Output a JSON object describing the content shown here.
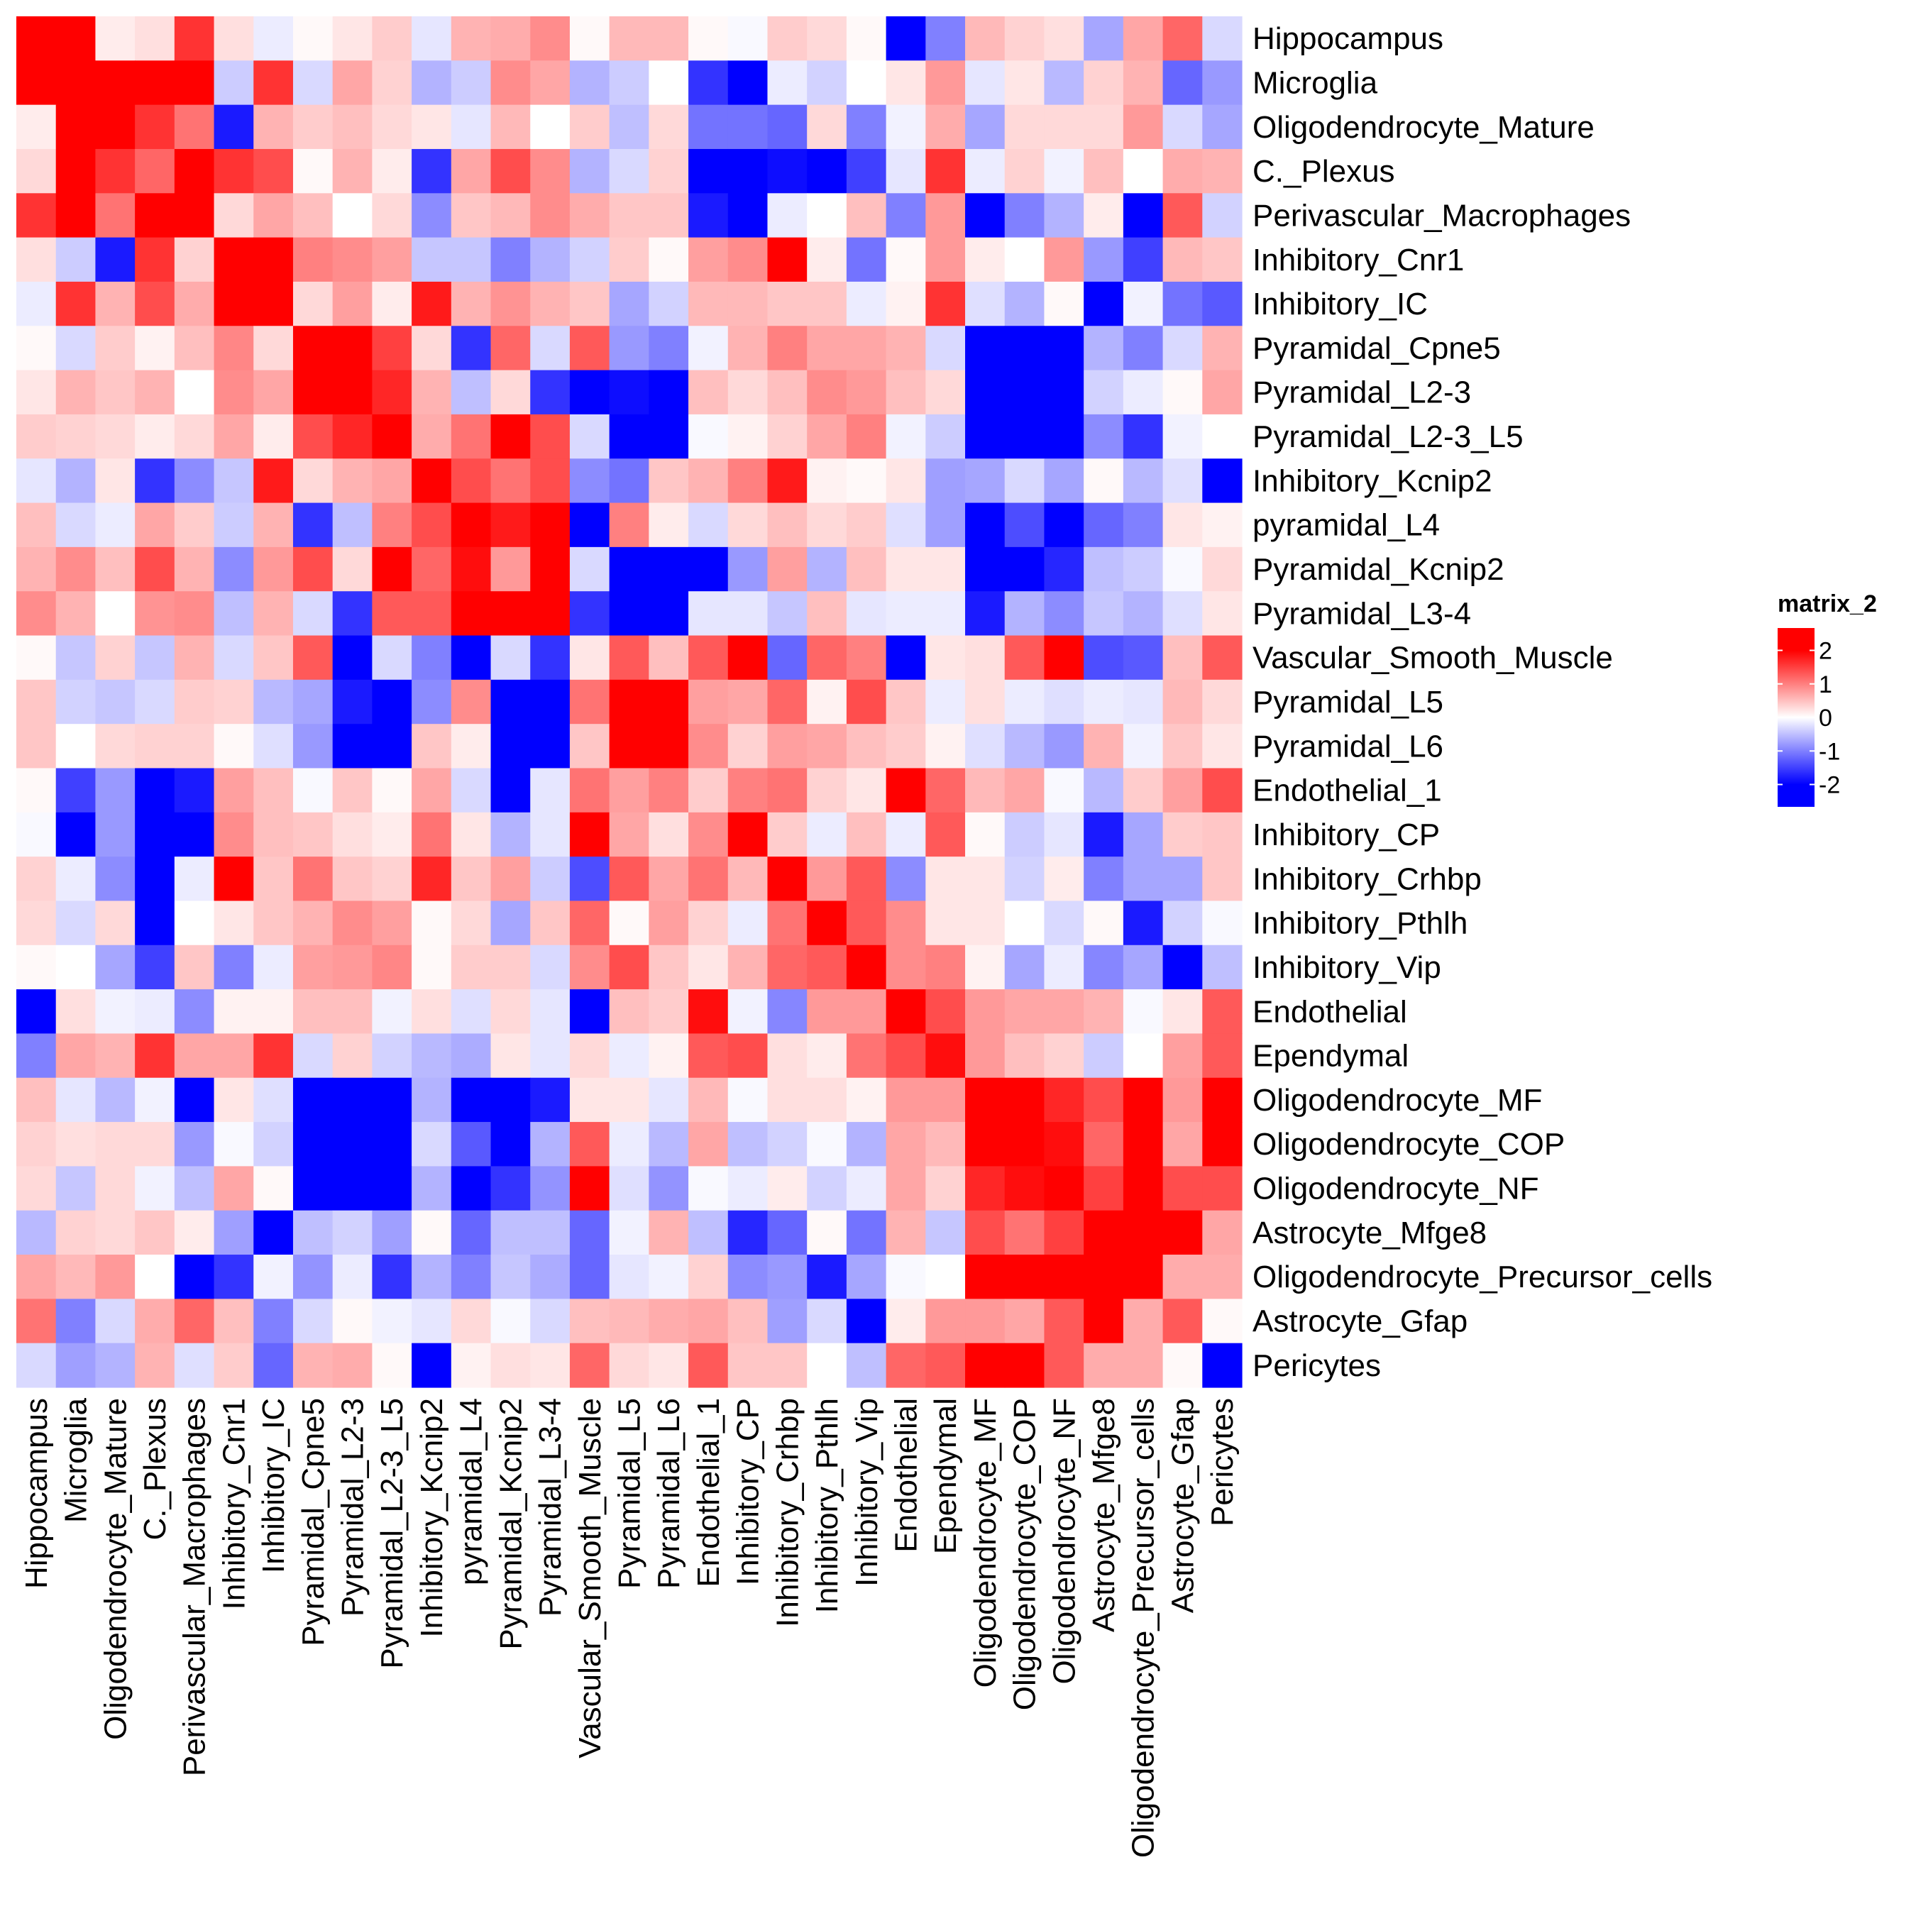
{
  "chart_data": {
    "type": "heatmap",
    "title": "",
    "legend": {
      "title": "matrix_2",
      "ticks": [
        2,
        1,
        0,
        -1,
        -2
      ],
      "range": [
        -2,
        2
      ],
      "colors": {
        "low": "#0000ff",
        "mid": "#ffffff",
        "high": "#ff0000"
      },
      "placement": "right"
    },
    "row_labels": [
      "Hippocampus",
      "Microglia",
      "Oligodendrocyte_Mature",
      "C._Plexus",
      "Perivascular_Macrophages",
      "Inhibitory_Cnr1",
      "Inhibitory_IC",
      "Pyramidal_Cpne5",
      "Pyramidal_L2-3",
      "Pyramidal_L2-3_L5",
      "Inhibitory_Kcnip2",
      "pyramidal_L4",
      "Pyramidal_Kcnip2",
      "Pyramidal_L3-4",
      "Vascular_Smooth_Muscle",
      "Pyramidal_L5",
      "Pyramidal_L6",
      "Endothelial_1",
      "Inhibitory_CP",
      "Inhibitory_Crhbp",
      "Inhibitory_Pthlh",
      "Inhibitory_Vip",
      "Endothelial",
      "Ependymal",
      "Oligodendrocyte_MF",
      "Oligodendrocyte_COP",
      "Oligodendrocyte_NF",
      "Astrocyte_Mfge8",
      "Oligodendrocyte_Precursor_cells",
      "Astrocyte_Gfap",
      "Pericytes"
    ],
    "col_labels": [
      "Hippocampus",
      "Microglia",
      "Oligodendrocyte_Mature",
      "C._Plexus",
      "Perivascular_Macrophages",
      "Inhibitory_Cnr1",
      "Inhibitory_IC",
      "Pyramidal_Cpne5",
      "Pyramidal_L2-3",
      "Pyramidal_L2-3_L5",
      "Inhibitory_Kcnip2",
      "pyramidal_L4",
      "Pyramidal_Kcnip2",
      "Pyramidal_L3-4",
      "Vascular_Smooth_Muscle",
      "Pyramidal_L5",
      "Pyramidal_L6",
      "Endothelial_1",
      "Inhibitory_CP",
      "Inhibitory_Crhbp",
      "Inhibitory_Pthlh",
      "Inhibitory_Vip",
      "Endothelial",
      "Ependymal",
      "Oligodendrocyte_MF",
      "Oligodendrocyte_COP",
      "Oligodendrocyte_NF",
      "Astrocyte_Mfge8",
      "Oligodendrocyte_Precursor_cells",
      "Astrocyte_Gfap",
      "Pericytes"
    ],
    "values": [
      [
        2,
        2,
        0.15,
        0.25,
        1.6,
        0.25,
        -0.15,
        0.05,
        0.2,
        0.4,
        -0.2,
        0.6,
        0.65,
        0.9,
        0.05,
        0.55,
        0.55,
        0.05,
        -0.05,
        0.4,
        0.3,
        0.05,
        -2,
        -1,
        0.55,
        0.35,
        0.25,
        -0.7,
        0.7,
        1.2,
        -0.3
      ],
      [
        2,
        2,
        2,
        2,
        2,
        -0.4,
        1.6,
        -0.3,
        0.7,
        0.35,
        -0.6,
        -0.4,
        0.9,
        0.7,
        -0.6,
        -0.4,
        0,
        -1.6,
        -2,
        -0.15,
        -0.35,
        0,
        0.2,
        0.8,
        -0.2,
        0.2,
        -0.55,
        0.35,
        0.6,
        -1.2,
        -0.8
      ],
      [
        0.15,
        2,
        2,
        1.6,
        1.1,
        -1.8,
        0.6,
        0.4,
        0.5,
        0.3,
        0.2,
        -0.2,
        0.55,
        0,
        0.4,
        -0.5,
        0.3,
        -1.1,
        -1.1,
        -1.2,
        0.3,
        -1,
        -0.1,
        0.65,
        -0.7,
        0.3,
        0.3,
        0.3,
        0.8,
        -0.3,
        -0.7
      ],
      [
        0.3,
        2,
        1.6,
        1.2,
        2,
        1.6,
        1.4,
        0.05,
        0.6,
        0.15,
        -1.6,
        0.7,
        1.4,
        0.9,
        -0.6,
        -0.3,
        0.35,
        -2,
        -2,
        -1.9,
        -2,
        -1.5,
        -0.2,
        1.6,
        -0.15,
        0.35,
        -0.1,
        0.5,
        0,
        0.65,
        0.6
      ],
      [
        1.6,
        2,
        1.1,
        2,
        2,
        0.3,
        0.7,
        0.5,
        0,
        0.3,
        -0.9,
        0.45,
        0.55,
        0.9,
        0.65,
        0.45,
        0.45,
        -1.8,
        -2,
        -0.15,
        0,
        0.5,
        -1,
        0.8,
        -2,
        -1,
        -0.6,
        0.15,
        -2,
        1.3,
        -0.35
      ],
      [
        0.25,
        -0.4,
        -1.8,
        1.6,
        0.35,
        2,
        2,
        1,
        0.9,
        0.75,
        -0.45,
        -0.45,
        -1,
        -0.6,
        -0.35,
        0.4,
        0.05,
        0.75,
        0.9,
        2,
        0.15,
        -1.1,
        0.05,
        0.8,
        0.15,
        0,
        0.8,
        -0.8,
        -1.5,
        0.55,
        0.45
      ],
      [
        -0.15,
        1.6,
        0.6,
        1.4,
        0.65,
        2,
        2,
        0.3,
        0.75,
        0.15,
        1.8,
        0.6,
        0.85,
        0.6,
        0.45,
        -0.7,
        -0.35,
        0.55,
        0.55,
        0.45,
        0.45,
        -0.15,
        0.1,
        1.6,
        -0.25,
        -0.6,
        0.05,
        -2,
        -0.1,
        -1.1,
        -1.3
      ],
      [
        0.05,
        -0.3,
        0.4,
        0.1,
        0.5,
        0.95,
        0.3,
        2,
        2,
        1.5,
        0.3,
        -1.6,
        1.2,
        -0.3,
        1.3,
        -0.8,
        -1,
        -0.1,
        0.6,
        1,
        0.7,
        0.7,
        0.6,
        -0.3,
        -2,
        -2,
        -2,
        -0.6,
        -1,
        -0.3,
        0.6
      ],
      [
        0.2,
        0.6,
        0.45,
        0.6,
        0,
        0.9,
        0.7,
        2,
        2,
        1.7,
        0.6,
        -0.5,
        0.3,
        -1.6,
        -2,
        -1.9,
        -2,
        0.5,
        0.3,
        0.5,
        0.9,
        0.8,
        0.5,
        0.3,
        -2,
        -2,
        -2,
        -0.35,
        -0.15,
        0.05,
        0.7
      ],
      [
        0.4,
        0.35,
        0.3,
        0.15,
        0.3,
        0.7,
        0.15,
        1.4,
        1.7,
        2,
        0.65,
        1.1,
        2,
        1.4,
        -0.3,
        -2,
        -2,
        -0.05,
        0.1,
        0.35,
        0.7,
        1,
        -0.1,
        -0.4,
        -2,
        -2,
        -2,
        -0.9,
        -1.6,
        -0.1,
        0
      ],
      [
        -0.2,
        -0.6,
        0.2,
        -1.6,
        -0.9,
        -0.45,
        1.8,
        0.3,
        0.6,
        0.7,
        2,
        1.4,
        1.1,
        1.4,
        -0.9,
        -1.1,
        0.45,
        0.6,
        1,
        1.8,
        0.1,
        0.05,
        0.2,
        -0.75,
        -0.7,
        -0.3,
        -0.7,
        0.05,
        -0.55,
        -0.25,
        -2
      ],
      [
        0.5,
        -0.3,
        -0.15,
        0.7,
        0.4,
        -0.4,
        0.6,
        -1.6,
        -0.5,
        1,
        1.4,
        2,
        1.8,
        2,
        -2,
        1,
        0.15,
        -0.3,
        0.3,
        0.5,
        0.3,
        0.4,
        -0.25,
        -0.75,
        -2,
        -1.4,
        -2,
        -1.2,
        -1,
        0.2,
        0.1
      ],
      [
        0.6,
        0.9,
        0.5,
        1.4,
        0.6,
        -0.9,
        0.8,
        1.4,
        0.3,
        2,
        1.2,
        1.9,
        0.8,
        2,
        -0.3,
        -2,
        -2,
        -2,
        -0.8,
        0.75,
        -0.6,
        0.5,
        0.2,
        0.2,
        -2,
        -2,
        -1.7,
        -0.5,
        -0.4,
        -0.05,
        0.3
      ],
      [
        0.9,
        0.6,
        0,
        0.85,
        0.9,
        -0.5,
        0.6,
        -0.3,
        -1.6,
        1.3,
        1.3,
        2,
        2,
        2,
        -1.6,
        -2,
        -2,
        -0.2,
        -0.2,
        -0.45,
        0.5,
        -0.2,
        -0.15,
        -0.15,
        -1.8,
        -0.6,
        -0.9,
        -0.45,
        -0.6,
        -0.25,
        0.2
      ],
      [
        0.05,
        -0.45,
        0.35,
        -0.45,
        0.6,
        -0.3,
        0.45,
        1.3,
        -2,
        -0.3,
        -1,
        -2,
        -0.3,
        -1.6,
        0.2,
        1.3,
        0.5,
        1.3,
        2,
        -1.2,
        1.2,
        1,
        -2,
        0.2,
        0.25,
        1.3,
        2,
        -1.4,
        -1.3,
        0.5,
        1.3
      ],
      [
        0.45,
        -0.35,
        -0.45,
        -0.3,
        0.4,
        0.35,
        -0.55,
        -0.7,
        -1.8,
        -2,
        -0.9,
        0.9,
        -2,
        -2,
        1.1,
        2,
        2,
        0.75,
        0.7,
        1.2,
        0.1,
        1.4,
        0.45,
        -0.15,
        0.25,
        -0.15,
        -0.25,
        -0.15,
        -0.2,
        0.55,
        0.3
      ],
      [
        0.45,
        0,
        0.3,
        0.35,
        0.35,
        0.05,
        -0.25,
        -0.8,
        -2,
        -2,
        0.45,
        0.15,
        -2,
        -2,
        0.45,
        2,
        2,
        0.9,
        0.35,
        0.75,
        0.7,
        0.5,
        0.4,
        0.1,
        -0.25,
        -0.55,
        -0.8,
        0.6,
        -0.1,
        0.45,
        0.2
      ],
      [
        0.05,
        -1.5,
        -0.8,
        -2,
        -1.8,
        0.75,
        0.5,
        -0.05,
        0.45,
        0.05,
        0.7,
        -0.3,
        -2,
        -0.2,
        1.1,
        0.75,
        1,
        0.4,
        1,
        1.1,
        0.35,
        0.2,
        2,
        1.2,
        0.55,
        0.7,
        -0.05,
        -0.55,
        0.4,
        0.75,
        1.4
      ],
      [
        -0.05,
        -2,
        -0.8,
        -2,
        -2,
        0.9,
        0.5,
        0.45,
        0.25,
        0.15,
        1.1,
        0.2,
        -0.6,
        -0.2,
        2,
        0.7,
        0.25,
        0.9,
        2,
        0.4,
        -0.15,
        0.5,
        -0.15,
        1.3,
        0.05,
        -0.4,
        -0.2,
        -1.8,
        -0.7,
        0.4,
        0.45
      ],
      [
        0.35,
        -0.15,
        -0.9,
        -2,
        -0.15,
        2,
        0.45,
        1.1,
        0.45,
        0.35,
        1.7,
        0.45,
        0.75,
        -0.4,
        -1.4,
        1.3,
        0.7,
        1.1,
        0.55,
        2,
        0.8,
        1.3,
        -0.9,
        0.2,
        0.2,
        -0.35,
        0.15,
        -1,
        -0.7,
        -0.7,
        0.45
      ],
      [
        0.3,
        -0.3,
        0.3,
        -2,
        0,
        0.2,
        0.45,
        0.6,
        0.9,
        0.75,
        0.05,
        0.3,
        -0.7,
        0.45,
        1.2,
        0.05,
        0.75,
        0.35,
        -0.15,
        1.1,
        2,
        1.3,
        0.9,
        0.2,
        0.2,
        0,
        -0.3,
        0.05,
        -1.8,
        -0.35,
        -0.05
      ],
      [
        0.05,
        0,
        -0.7,
        -1.5,
        0.45,
        -1,
        -0.15,
        0.75,
        0.8,
        0.95,
        0.05,
        0.4,
        0.4,
        -0.3,
        0.9,
        1.4,
        0.45,
        0.2,
        0.6,
        1.2,
        1.3,
        2,
        0.9,
        1,
        0.1,
        -0.7,
        -0.15,
        -0.95,
        -0.7,
        -2,
        -0.5
      ],
      [
        -2,
        0.25,
        -0.1,
        -0.15,
        -0.9,
        0.1,
        0.1,
        0.5,
        0.5,
        -0.1,
        0.25,
        -0.25,
        0.3,
        -0.2,
        -2,
        0.5,
        0.4,
        1.9,
        -0.1,
        -0.95,
        0.8,
        0.8,
        2,
        1.4,
        0.8,
        0.7,
        0.7,
        0.6,
        -0.05,
        0.2,
        1.3
      ],
      [
        -1,
        0.7,
        0.6,
        1.6,
        0.7,
        0.7,
        1.6,
        -0.3,
        0.35,
        -0.35,
        -0.55,
        -0.65,
        0.2,
        -0.2,
        0.3,
        -0.15,
        0.1,
        1.3,
        1.4,
        0.25,
        0.15,
        1.1,
        1.4,
        1.9,
        0.8,
        0.5,
        0.35,
        -0.4,
        0,
        0.75,
        1.3
      ],
      [
        0.5,
        -0.2,
        -0.55,
        -0.1,
        -2,
        0.2,
        -0.25,
        -2,
        -2,
        -2,
        -0.6,
        -2,
        -2,
        -1.8,
        0.2,
        0.2,
        -0.2,
        0.55,
        -0.05,
        0.25,
        0.25,
        0.1,
        0.8,
        0.8,
        2,
        2,
        1.7,
        1.4,
        2,
        0.8,
        2
      ],
      [
        0.35,
        0.25,
        0.3,
        0.3,
        -0.8,
        -0.05,
        -0.35,
        -2,
        -2,
        -2,
        -0.3,
        -1.3,
        -2,
        -0.6,
        1.3,
        -0.15,
        -0.55,
        0.7,
        -0.5,
        -0.35,
        -0.05,
        -0.6,
        0.7,
        0.55,
        2,
        2,
        1.9,
        1.2,
        2,
        0.7,
        2
      ],
      [
        0.3,
        -0.45,
        0.3,
        -0.1,
        -0.5,
        0.7,
        0.05,
        -2,
        -2,
        -2,
        -0.6,
        -2,
        -1.6,
        -0.85,
        2,
        -0.25,
        -0.85,
        -0.05,
        -0.15,
        0.15,
        -0.35,
        -0.15,
        0.7,
        0.35,
        1.7,
        1.9,
        2,
        1.5,
        2,
        1.4,
        1.4
      ],
      [
        -0.55,
        0.35,
        0.3,
        0.45,
        0.15,
        -0.75,
        -2,
        -0.5,
        -0.35,
        -0.75,
        0.05,
        -1.2,
        -0.5,
        -0.5,
        -1.2,
        -0.1,
        0.6,
        -0.5,
        -1.7,
        -1.2,
        0.05,
        -1.1,
        0.6,
        -0.45,
        1.4,
        1.1,
        1.5,
        2,
        2,
        2,
        0.7
      ],
      [
        0.7,
        0.55,
        0.8,
        0,
        -2,
        -1.6,
        -0.1,
        -0.85,
        -0.15,
        -1.6,
        -0.6,
        -1,
        -0.45,
        -0.65,
        -1.2,
        -0.2,
        -0.1,
        0.35,
        -0.9,
        -0.8,
        -1.8,
        -0.7,
        -0.05,
        0,
        2,
        2,
        2,
        2,
        2,
        0.65,
        0.65
      ],
      [
        1.1,
        -1,
        -0.3,
        0.65,
        1.2,
        0.5,
        -1,
        -0.3,
        0.05,
        -0.1,
        -0.2,
        0.3,
        -0.05,
        -0.3,
        0.5,
        0.55,
        0.65,
        0.7,
        0.5,
        -0.75,
        -0.3,
        -2,
        0.15,
        0.8,
        0.8,
        0.7,
        1.3,
        2,
        0.65,
        1.3,
        0.05
      ],
      [
        -0.3,
        -0.75,
        -0.6,
        0.6,
        -0.25,
        0.4,
        -1.2,
        0.6,
        0.65,
        0.05,
        -2,
        0.1,
        0.25,
        0.2,
        1.2,
        0.3,
        0.2,
        1.3,
        0.45,
        0.45,
        0,
        -0.5,
        1.2,
        1.3,
        2,
        2,
        1.3,
        0.65,
        0.65,
        0.05,
        -2
      ]
    ]
  }
}
